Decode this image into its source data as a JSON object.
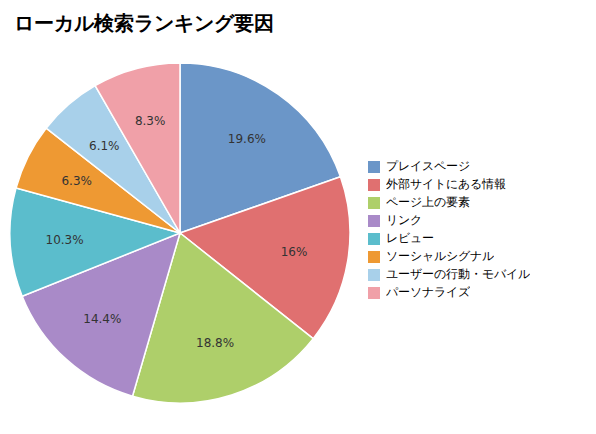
{
  "chart_data": {
    "type": "pie",
    "title": "ローカル検索ランキング要因",
    "categories": [
      "プレイスページ",
      "外部サイトにある情報",
      "ページ上の要素",
      "リンク",
      "レビュー",
      "ソーシャルシグナル",
      "ユーザーの行動・モバイル",
      "パーソナライズ"
    ],
    "values": [
      19.6,
      16.0,
      18.8,
      14.4,
      10.3,
      6.3,
      6.1,
      8.3
    ],
    "value_labels": [
      "19.6%",
      "16%",
      "18.8%",
      "14.4%",
      "10.3%",
      "6.3%",
      "6.1%",
      "8.3%"
    ],
    "colors": [
      "#6B96C8",
      "#E07070",
      "#AECF6A",
      "#A98AC8",
      "#5BBDCC",
      "#EE9933",
      "#A8D0EA",
      "#F0A0A8"
    ],
    "data_labels": true,
    "legend": "right"
  }
}
